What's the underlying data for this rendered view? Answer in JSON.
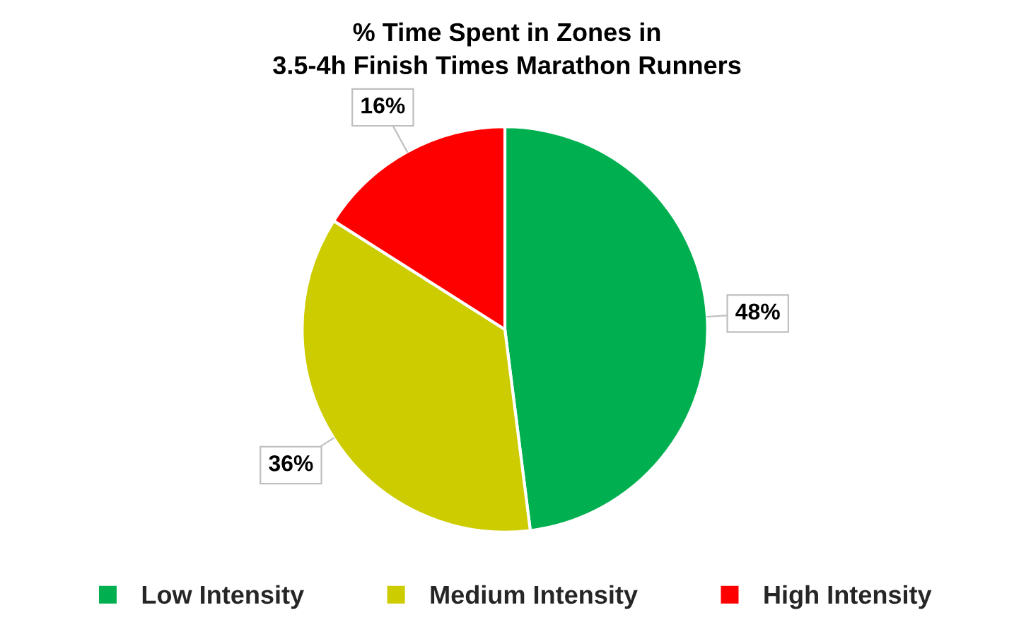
{
  "chart_data": {
    "type": "pie",
    "title": "% Time Spent in Zones in\n3.5-4h Finish Times Marathon Runners",
    "categories": [
      "Low Intensity",
      "Medium Intensity",
      "High Intensity"
    ],
    "values": [
      48,
      36,
      16
    ],
    "colors": [
      "#00b050",
      "#cccc00",
      "#ff0000"
    ],
    "value_labels": [
      "48%",
      "36%",
      "16%"
    ],
    "legend": "bottom"
  }
}
